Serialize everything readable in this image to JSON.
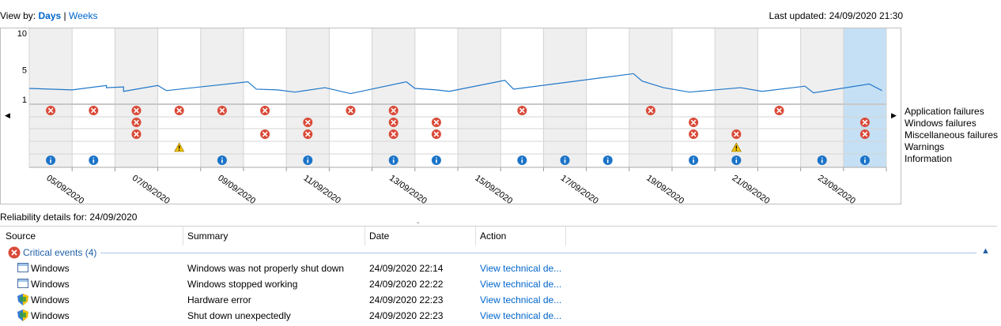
{
  "view_by": {
    "label": "View by:",
    "days": "Days",
    "separator": "|",
    "weeks": "Weeks"
  },
  "last_updated": "Last updated: 24/09/2020 21:30",
  "colors": {
    "failure": "#d94a38",
    "warning": "#f2c200",
    "info": "#1a73c8",
    "line": "#1f77c9",
    "selected": "#c5e0f5"
  },
  "chart_data": {
    "type": "line",
    "y_ticks": [
      "10",
      "5",
      "1"
    ],
    "ylim": [
      1,
      10
    ],
    "x_tick_labels": [
      "05/09/2020",
      "07/09/2020",
      "09/09/2020",
      "11/09/2020",
      "13/09/2020",
      "15/09/2020",
      "17/09/2020",
      "19/09/2020",
      "21/09/2020",
      "23/09/2020"
    ],
    "days": [
      "05/09",
      "06/09",
      "07/09",
      "08/09",
      "09/09",
      "10/09",
      "11/09",
      "12/09",
      "13/09",
      "14/09",
      "15/09",
      "16/09",
      "17/09",
      "18/09",
      "19/09",
      "20/09",
      "21/09",
      "22/09",
      "23/09",
      "24/09"
    ],
    "selected_day": "24/09",
    "stability_index": [
      [
        0,
        2.5
      ],
      [
        1,
        2.3
      ],
      [
        1.8,
        2.9
      ],
      [
        1.8,
        2.6
      ],
      [
        2.2,
        2.7
      ],
      [
        2.2,
        2.1
      ],
      [
        3,
        2.9
      ],
      [
        3.2,
        2.2
      ],
      [
        5.1,
        3.4
      ],
      [
        5.3,
        2.4
      ],
      [
        5.8,
        2.3
      ],
      [
        6.2,
        2.0
      ],
      [
        6.9,
        2.6
      ],
      [
        7.5,
        1.8
      ],
      [
        8.8,
        3.4
      ],
      [
        9,
        2.5
      ],
      [
        9.5,
        2.3
      ],
      [
        9.8,
        2.1
      ],
      [
        11.1,
        3.6
      ],
      [
        11.3,
        2.4
      ],
      [
        14.1,
        4.5
      ],
      [
        14.3,
        3.5
      ],
      [
        14.8,
        2.6
      ],
      [
        15.4,
        2.0
      ],
      [
        16.6,
        2.6
      ],
      [
        17.1,
        2.1
      ],
      [
        18.1,
        2.8
      ],
      [
        18.3,
        1.9
      ],
      [
        19.6,
        3.1
      ],
      [
        19.9,
        2.2
      ]
    ],
    "categories": [
      "Application failures",
      "Windows failures",
      "Miscellaneous failures",
      "Warnings",
      "Information"
    ],
    "events": {
      "application_failures": [
        0,
        1,
        2,
        3,
        4,
        5,
        7,
        8,
        11,
        14,
        17
      ],
      "windows_failures": [
        2,
        6,
        8,
        9,
        15,
        19
      ],
      "miscellaneous_failures": [
        2,
        5,
        6,
        8,
        9,
        15,
        16,
        19
      ],
      "warnings": [
        3,
        16
      ],
      "information": [
        0,
        1,
        4,
        6,
        8,
        9,
        11,
        12,
        13,
        15,
        16,
        18,
        19
      ]
    }
  },
  "details": {
    "title": "Reliability details for: 24/09/2020",
    "columns": [
      "Source",
      "Summary",
      "Date",
      "Action"
    ],
    "group_label": "Critical events (4)",
    "rows": [
      {
        "icon": "windows-app-icon",
        "source": "Windows",
        "summary": "Windows was not properly shut down",
        "date": "24/09/2020 22:14",
        "action": "View technical de..."
      },
      {
        "icon": "windows-app-icon",
        "source": "Windows",
        "summary": "Windows stopped working",
        "date": "24/09/2020 22:22",
        "action": "View technical de..."
      },
      {
        "icon": "windows-shield-icon",
        "source": "Windows",
        "summary": "Hardware error",
        "date": "24/09/2020 22:23",
        "action": "View technical de..."
      },
      {
        "icon": "windows-shield-icon",
        "source": "Windows",
        "summary": "Shut down unexpectedly",
        "date": "24/09/2020 22:23",
        "action": "View technical de..."
      }
    ]
  }
}
